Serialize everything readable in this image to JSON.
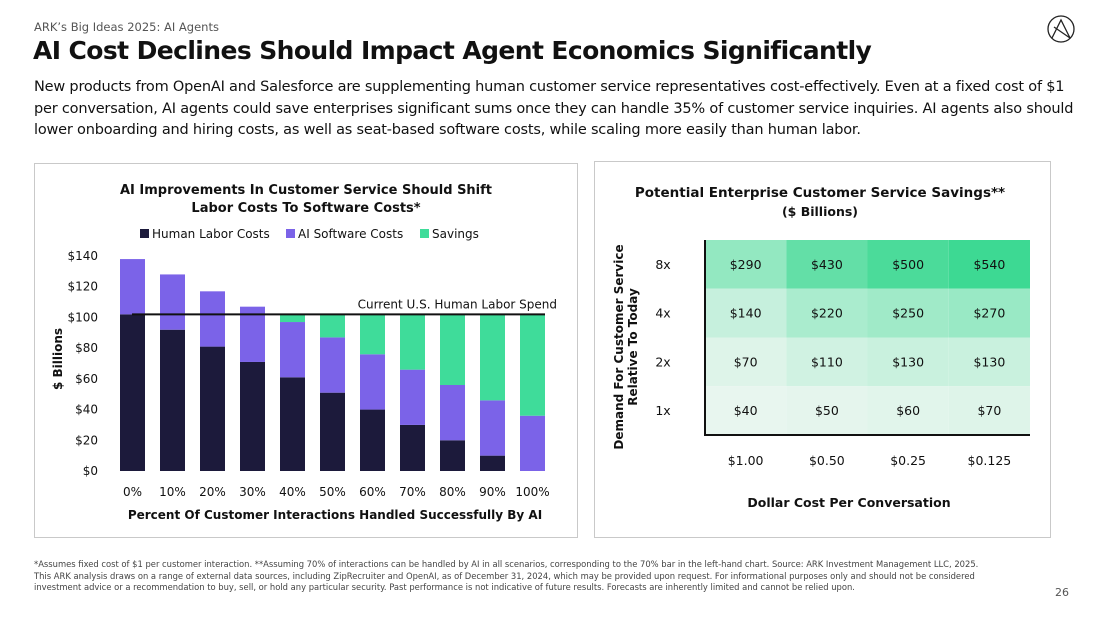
{
  "header": {
    "subtitle": "ARK’s Big Ideas 2025: AI Agents",
    "title": "AI Cost Declines Should Impact Agent Economics Significantly",
    "intro": "New products from OpenAI and Salesforce are supplementing human customer service representatives cost-effectively. Even at a fixed cost of $1 per conversation, AI agents could save enterprises significant sums once they can handle 35% of customer service inquiries. AI agents also should lower onboarding and hiring costs, as well as seat-based software costs, while scaling more easily than human labor."
  },
  "chart_data": [
    {
      "type": "bar",
      "stacked": true,
      "title_line1": "AI Improvements In Customer Service Should Shift",
      "title_line2": "Labor Costs To Software Costs*",
      "xlabel": "Percent Of Customer Interactions Handled Successfully By AI",
      "ylabel": "$ Billions",
      "categories": [
        "0%",
        "10%",
        "20%",
        "30%",
        "40%",
        "50%",
        "60%",
        "70%",
        "80%",
        "90%",
        "100%"
      ],
      "ylim": [
        0,
        140
      ],
      "yticks": [
        "$0",
        "$20",
        "$40",
        "$60",
        "$80",
        "$100",
        "$120",
        "$140"
      ],
      "legend_position": "top",
      "series": [
        {
          "name": "Human Labor Costs",
          "color": "#1c1a3b",
          "values": [
            102,
            92,
            81,
            71,
            61,
            51,
            40,
            30,
            20,
            10,
            0
          ]
        },
        {
          "name": "AI Software Costs",
          "color": "#7b63e8",
          "values": [
            36,
            36,
            36,
            36,
            36,
            36,
            36,
            36,
            36,
            36,
            36
          ]
        },
        {
          "name": "Savings",
          "color": "#3fdc9a",
          "values": [
            0,
            0,
            0,
            0,
            5,
            15,
            26,
            36,
            46,
            56,
            66
          ]
        }
      ],
      "reference_line": {
        "label": "Current U.S. Human Labor Spend",
        "value": 102
      }
    },
    {
      "type": "heatmap",
      "title": "Potential Enterprise Customer Service Savings**",
      "subtitle": "($ Billions)",
      "xlabel": "Dollar Cost Per Conversation",
      "ylabel_line1": "Demand For Customer Service",
      "ylabel_line2": "Relative To Today",
      "columns": [
        "$1.00",
        "$0.50",
        "$0.25",
        "$0.125"
      ],
      "rows": [
        "8x",
        "4x",
        "2x",
        "1x"
      ],
      "values": [
        [
          "$290",
          "$430",
          "$500",
          "$540"
        ],
        [
          "$140",
          "$220",
          "$250",
          "$270"
        ],
        [
          "$70",
          "$110",
          "$130",
          "$130"
        ],
        [
          "$40",
          "$50",
          "$60",
          "$70"
        ]
      ],
      "numeric_values": [
        [
          290,
          430,
          500,
          540
        ],
        [
          140,
          220,
          250,
          270
        ],
        [
          70,
          110,
          130,
          130
        ],
        [
          40,
          50,
          60,
          70
        ]
      ]
    }
  ],
  "footnote": {
    "line1": "*Assumes fixed cost of $1 per customer interaction. **Assuming 70% of interactions can be handled by AI in all scenarios, corresponding to the 70% bar in the left-hand chart. Source: ARK Investment Management LLC, 2025.",
    "line2": "This ARK analysis draws on a range of external data sources, including ZipRecruiter and OpenAI, as of December 31, 2024, which may be provided upon request. For informational purposes only and should not be considered",
    "line3": "investment advice or a recommendation to buy, sell, or hold any particular security. Past performance is not indicative of future results. Forecasts are inherently limited and cannot be relied upon."
  },
  "page_number": "26"
}
